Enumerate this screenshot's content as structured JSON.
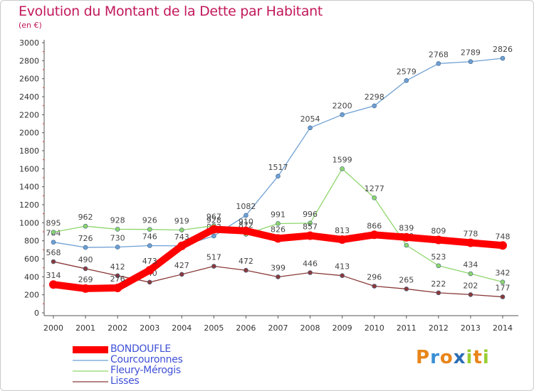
{
  "header": {
    "title": "Evolution du Montant de la Dette par Habitant",
    "unit": "(en €)"
  },
  "logo": {
    "text": "Proxiti",
    "letters": [
      {
        "ch": "P",
        "color": "#e8851a"
      },
      {
        "ch": "r",
        "color": "#3b8fd4"
      },
      {
        "ch": "o",
        "color": "#e8851a"
      },
      {
        "ch": "x",
        "color": "#2a6db5"
      },
      {
        "ch": "i",
        "color": "#9acd32"
      },
      {
        "ch": "t",
        "color": "#e8851a"
      },
      {
        "ch": "i",
        "color": "#9acd32"
      }
    ]
  },
  "chart_data": {
    "type": "line",
    "title": "Evolution du Montant de la Dette par Habitant",
    "subtitle": "(en €)",
    "x": [
      "2000",
      "2001",
      "2002",
      "2003",
      "2004",
      "2005",
      "2006",
      "2007",
      "2008",
      "2009",
      "2010",
      "2011",
      "2012",
      "2013",
      "2014"
    ],
    "ylim": [
      0,
      3000
    ],
    "yticks": [
      0,
      200,
      400,
      600,
      800,
      1000,
      1200,
      1400,
      1600,
      1800,
      2000,
      2200,
      2400,
      2600,
      2800,
      3000
    ],
    "grid": false,
    "legend_position": "bottom-left",
    "series": [
      {
        "name": "BONDOUFLE",
        "color": "#ff0000",
        "values": [
          314,
          269,
          276,
          473,
          743,
          928,
          910,
          826,
          857,
          813,
          866,
          839,
          809,
          778,
          748
        ],
        "labels": [
          "314",
          "269",
          "276",
          "473",
          "743",
          "928",
          "910",
          "826",
          "857",
          "813",
          "866",
          "839",
          "809",
          "778",
          "748"
        ]
      },
      {
        "name": "Courcouronnes",
        "color": "#6fa0d4",
        "values": [
          784,
          726,
          730,
          746,
          743,
          853,
          1082,
          1517,
          2054,
          2200,
          2298,
          2579,
          2768,
          2789,
          2826
        ],
        "labels": [
          "784",
          "726",
          "730",
          "746",
          "",
          "853",
          "1082",
          "1517",
          "2054",
          "2200",
          "2298",
          "2579",
          "2768",
          "2789",
          "2826"
        ]
      },
      {
        "name": "Fleury-Mérogis",
        "color": "#8ed66b",
        "values": [
          895,
          962,
          928,
          926,
          919,
          967,
          872,
          991,
          996,
          1599,
          1277,
          750,
          523,
          434,
          342
        ],
        "labels": [
          "895",
          "962",
          "928",
          "926",
          "919",
          "967",
          "872",
          "991",
          "996",
          "1599",
          "1277",
          "750",
          "523",
          "434",
          "342"
        ]
      },
      {
        "name": "Lisses",
        "color": "#8b3a3a",
        "values": [
          568,
          490,
          412,
          340,
          427,
          517,
          472,
          399,
          446,
          413,
          296,
          265,
          222,
          202,
          177
        ],
        "labels": [
          "568",
          "490",
          "412",
          "340",
          "427",
          "517",
          "472",
          "399",
          "446",
          "413",
          "296",
          "265",
          "222",
          "202",
          "177"
        ]
      }
    ]
  }
}
